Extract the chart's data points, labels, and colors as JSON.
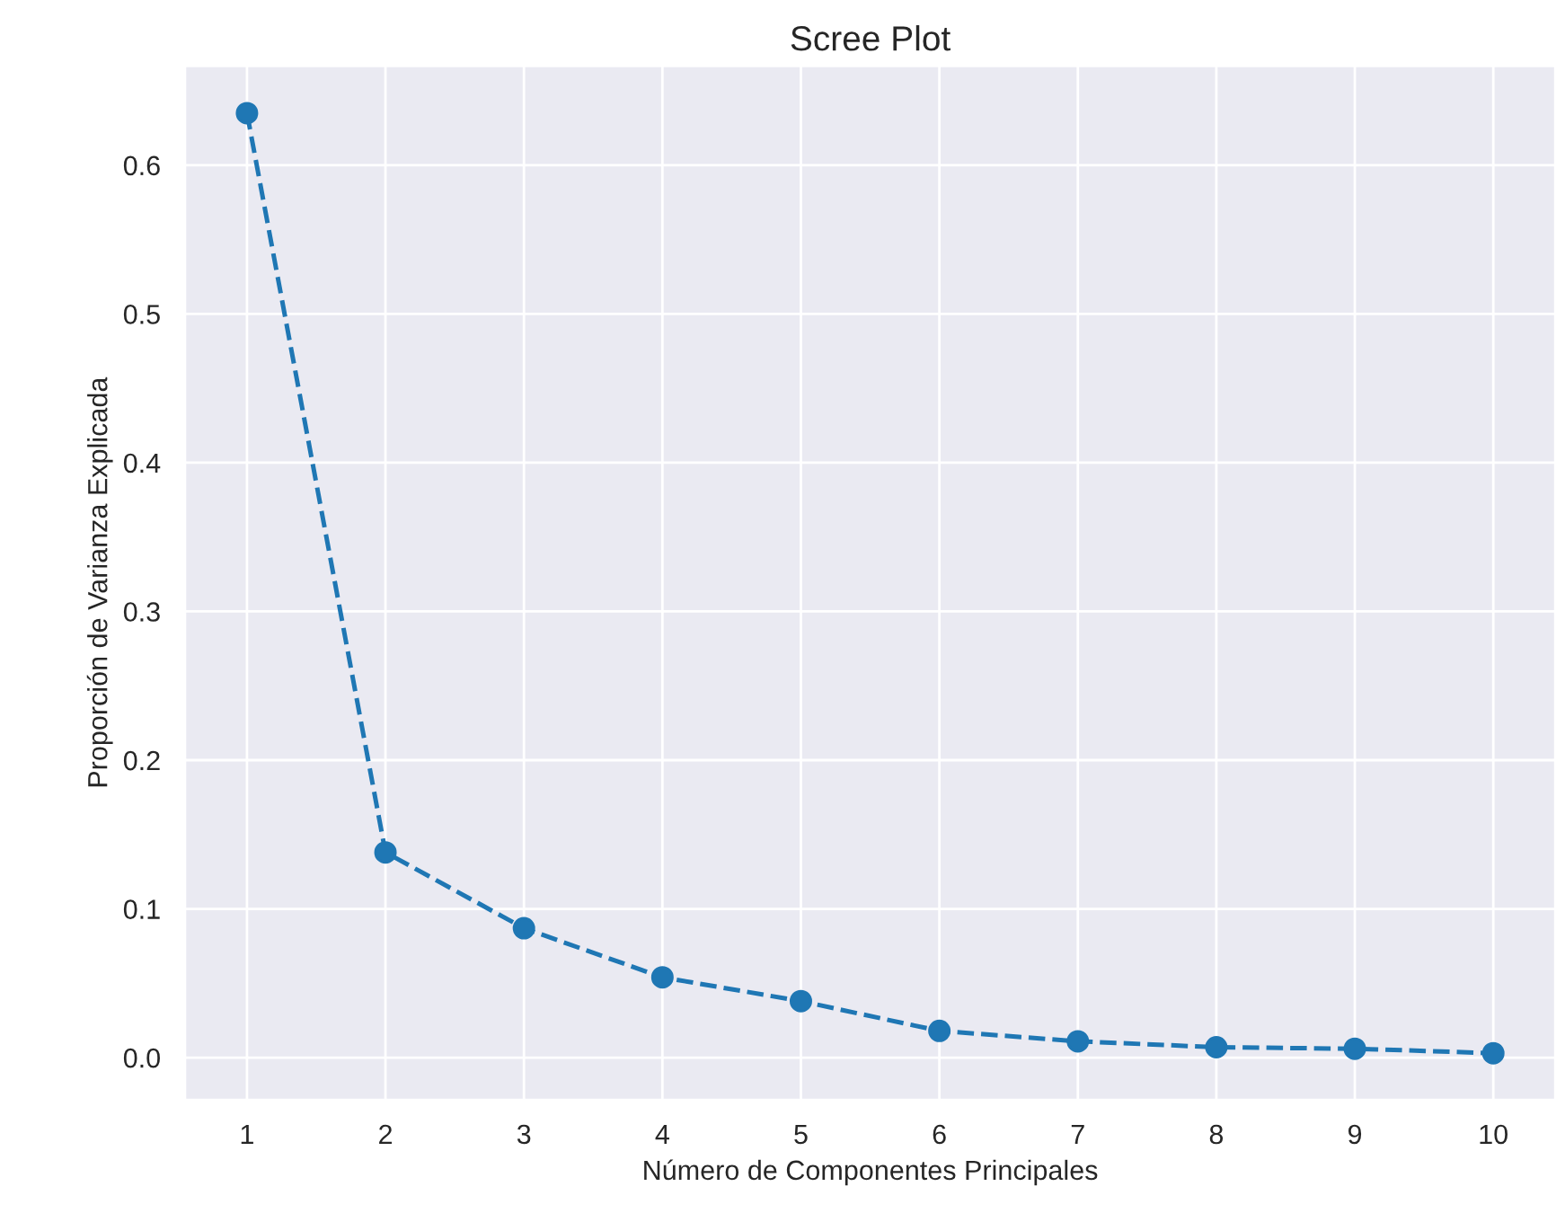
{
  "chart_data": {
    "type": "line",
    "title": "Scree Plot",
    "xlabel": "Número de Componentes Principales",
    "ylabel": "Proporción de Varianza Explicada",
    "x": [
      1,
      2,
      3,
      4,
      5,
      6,
      7,
      8,
      9,
      10
    ],
    "series": [
      {
        "color": "#1f77b4",
        "values": [
          0.635,
          0.138,
          0.087,
          0.054,
          0.038,
          0.018,
          0.011,
          0.007,
          0.006,
          0.003
        ]
      }
    ],
    "xlim": [
      0.55,
      10.45
    ],
    "xticks": [
      1,
      2,
      3,
      4,
      5,
      6,
      7,
      8,
      9,
      10
    ],
    "ylim": [
      -0.0286,
      0.667
    ],
    "yticks": [
      {
        "value": 0,
        "label": "0.0"
      },
      0.1,
      0.2,
      0.3,
      0.4,
      0.5,
      0.6
    ],
    "grid": true,
    "marker": "circle",
    "line_style": "dashed"
  }
}
